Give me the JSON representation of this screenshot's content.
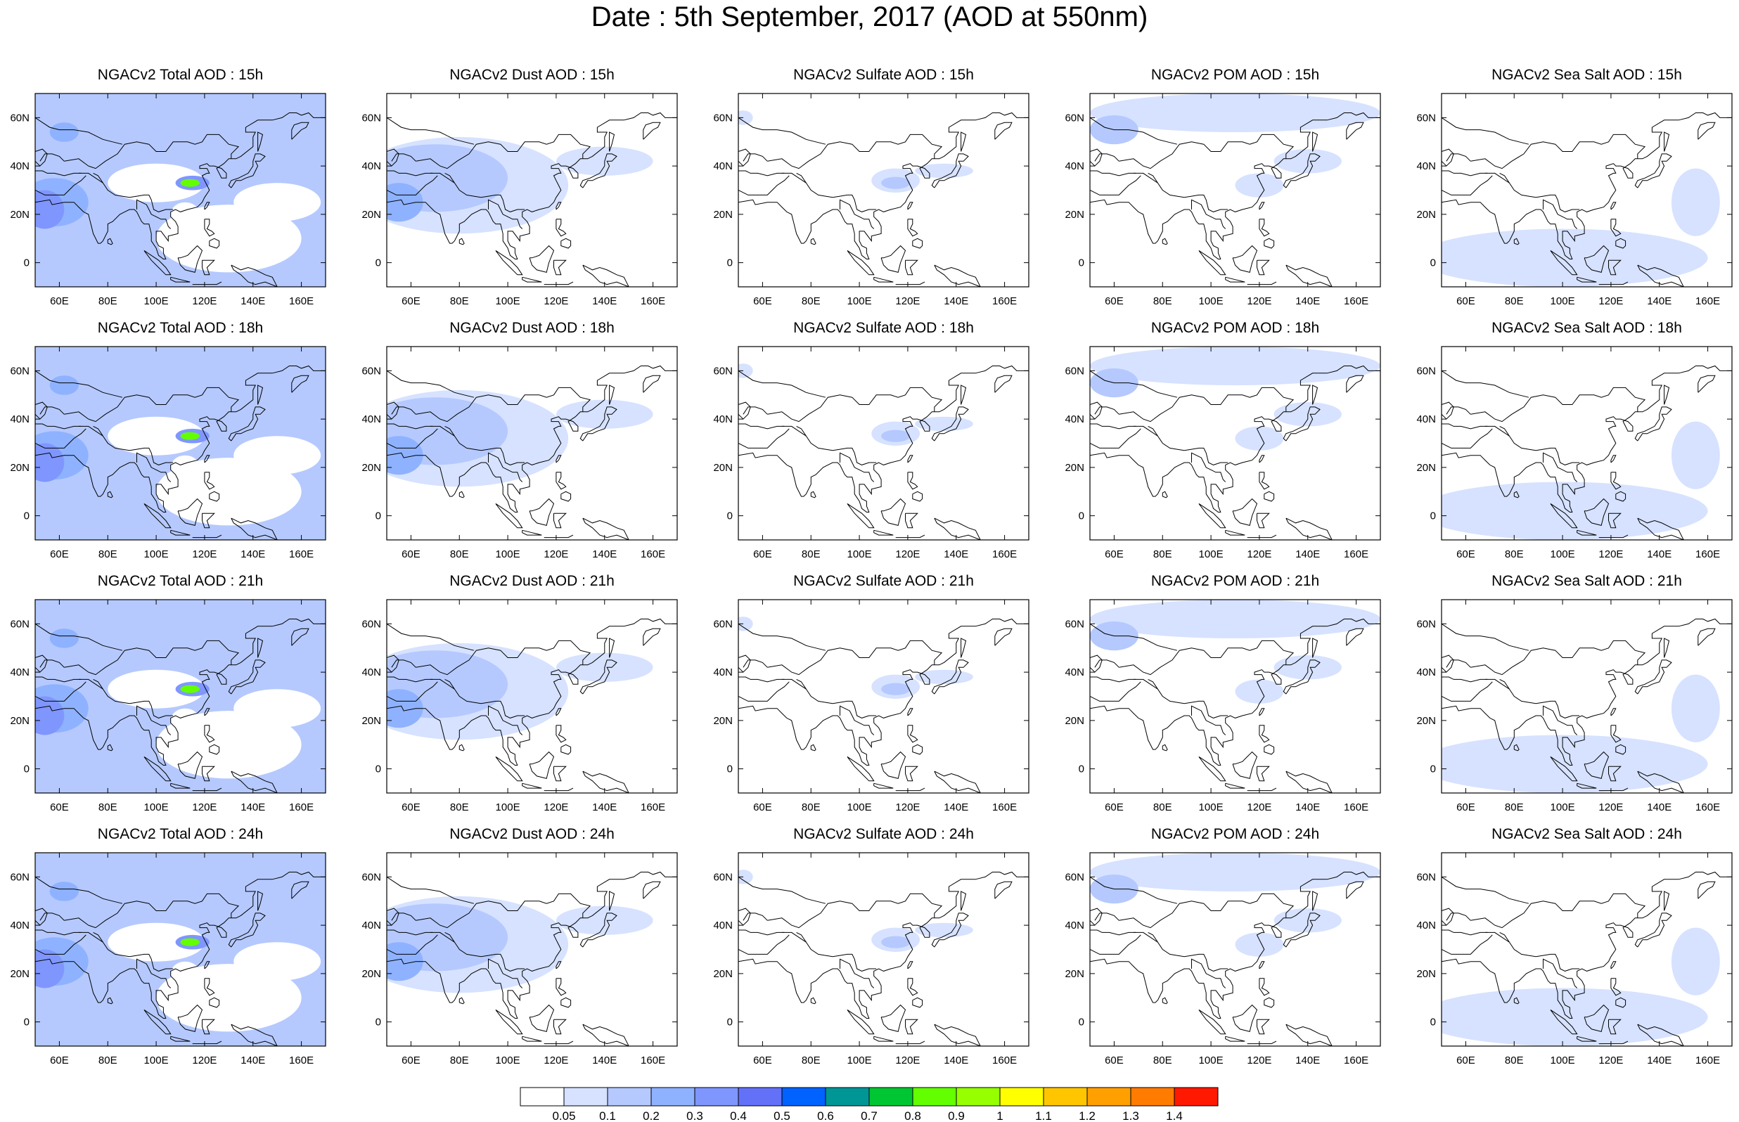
{
  "title": "Date : 5th September, 2017 (AOD at 550nm)",
  "panels": [
    [
      "NGACv2 Total AOD : 15h",
      "NGACv2 Dust AOD : 15h",
      "NGACv2 Sulfate AOD : 15h",
      "NGACv2 POM AOD : 15h",
      "NGACv2 Sea Salt AOD : 15h"
    ],
    [
      "NGACv2 Total AOD : 18h",
      "NGACv2 Dust AOD : 18h",
      "NGACv2 Sulfate AOD : 18h",
      "NGACv2 POM AOD : 18h",
      "NGACv2 Sea Salt AOD : 18h"
    ],
    [
      "NGACv2 Total AOD : 21h",
      "NGACv2 Dust AOD : 21h",
      "NGACv2 Sulfate AOD : 21h",
      "NGACv2 POM AOD : 21h",
      "NGACv2 Sea Salt AOD : 21h"
    ],
    [
      "NGACv2 Total AOD : 24h",
      "NGACv2 Dust AOD : 24h",
      "NGACv2 Sulfate AOD : 24h",
      "NGACv2 POM AOD : 24h",
      "NGACv2 Sea Salt  AOD : 24h"
    ]
  ],
  "x_tick_labels": [
    "60E",
    "80E",
    "100E",
    "120E",
    "140E",
    "160E"
  ],
  "x_tick_values": [
    60,
    80,
    100,
    120,
    140,
    160
  ],
  "y_tick_labels": [
    "60N",
    "40N",
    "20N",
    "0"
  ],
  "y_tick_values": [
    60,
    40,
    20,
    0
  ],
  "lon_range": [
    50,
    170
  ],
  "lat_range": [
    -10,
    70
  ],
  "colorbar": {
    "labels": [
      "0.05",
      "0.1",
      "0.2",
      "0.3",
      "0.4",
      "0.5",
      "0.6",
      "0.7",
      "0.8",
      "0.9",
      "1",
      "1.1",
      "1.2",
      "1.3",
      "1.4"
    ],
    "colors": [
      "#ffffff",
      "#d6e2ff",
      "#b5c9ff",
      "#8eb2ff",
      "#7f96ff",
      "#6370f8",
      "#0062ff",
      "#009696",
      "#00c633",
      "#63ff00",
      "#96ff00",
      "#ffff00",
      "#ffc600",
      "#ffa000",
      "#ff7c00",
      "#ff1900"
    ]
  },
  "colors": {
    "coast": "#000000",
    "aod_low": "#d6e2ff",
    "aod_mid": "#b5c9ff",
    "aod_high": "#8eb2ff",
    "aod_peak": "#7f96ff",
    "aod_hot": "#63ff00"
  }
}
